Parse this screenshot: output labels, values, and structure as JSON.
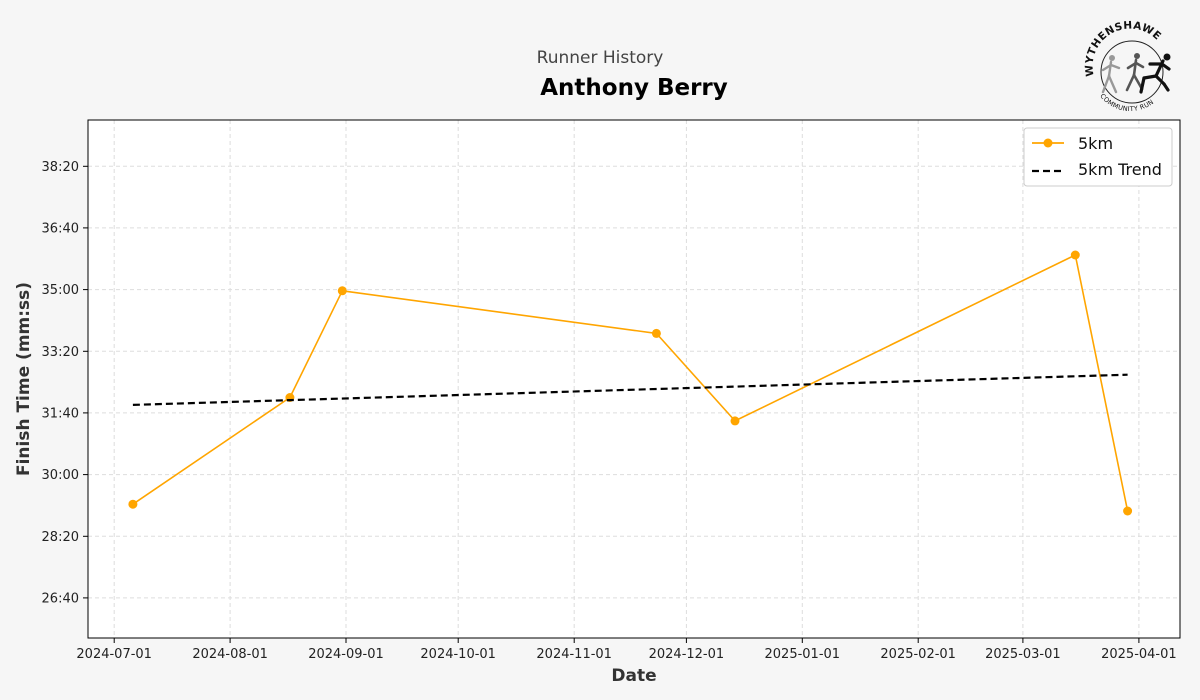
{
  "logo": {
    "top_text": "WYTHENSHAWE",
    "bottom_text": "COMMUNITY RUN"
  },
  "chart_data": {
    "type": "line",
    "subtitle": "Runner History",
    "title": "Anthony Berry",
    "xlabel": "Date",
    "ylabel": "Finish Time (mm:ss)",
    "grid": true,
    "legend_position": "top-right",
    "x_range": [
      "2024-06-24",
      "2025-04-12"
    ],
    "y_range_seconds": [
      1535,
      2375
    ],
    "x_ticks": [
      "2024-07-01",
      "2024-08-01",
      "2024-09-01",
      "2024-10-01",
      "2024-11-01",
      "2024-12-01",
      "2025-01-01",
      "2025-02-01",
      "2025-03-01",
      "2025-04-01"
    ],
    "y_ticks": [
      "26:40",
      "28:20",
      "30:00",
      "31:40",
      "33:20",
      "35:00",
      "36:40",
      "38:20"
    ],
    "series": [
      {
        "name": "5km",
        "color": "#FFA500",
        "marker": "circle",
        "x": [
          "2024-07-06",
          "2024-08-17",
          "2024-08-31",
          "2024-11-23",
          "2024-12-14",
          "2025-03-15",
          "2025-03-29"
        ],
        "y": [
          "29:12",
          "32:05",
          "34:58",
          "33:49",
          "31:27",
          "35:56",
          "29:01"
        ]
      },
      {
        "name": "5km Trend",
        "color": "#000000",
        "style": "dashed",
        "x": [
          "2024-07-06",
          "2025-03-29"
        ],
        "y": [
          "31:53",
          "32:42"
        ]
      }
    ]
  }
}
